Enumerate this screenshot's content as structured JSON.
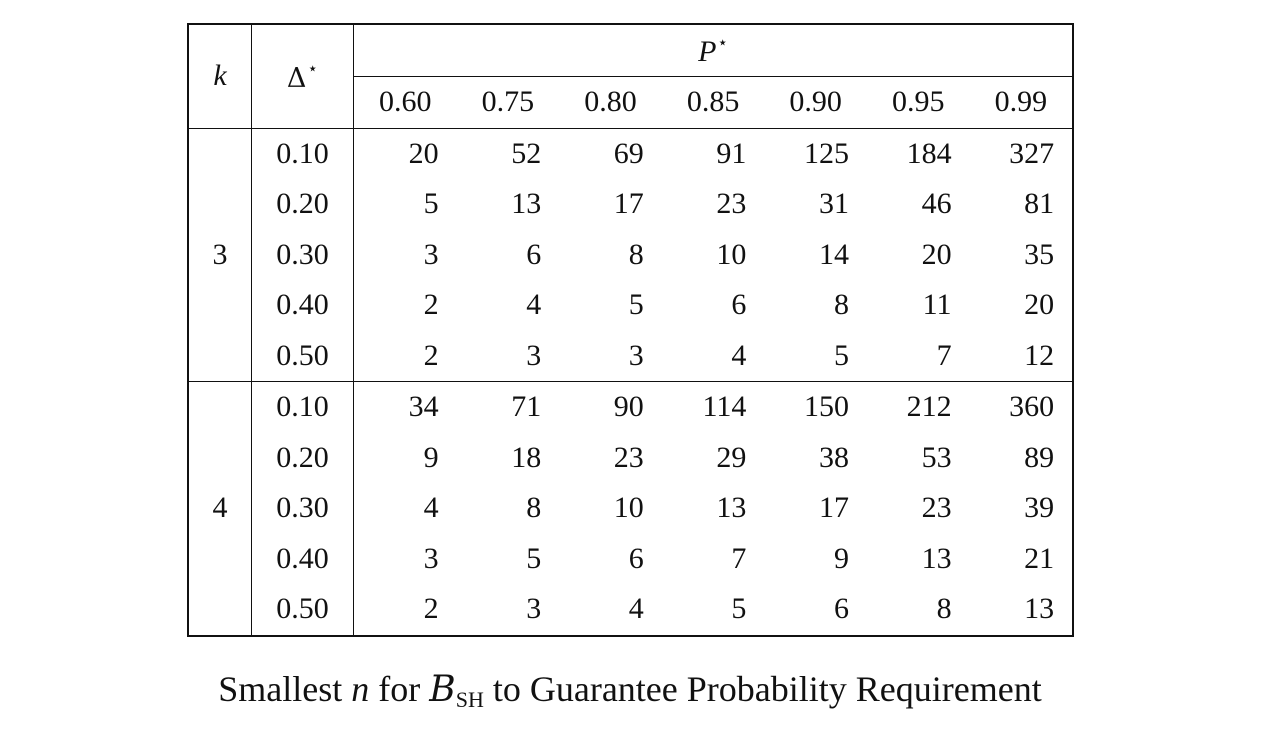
{
  "table": {
    "group_header": "P",
    "group_header_sup": "⋆",
    "col_k": "k",
    "col_delta": "Δ",
    "col_delta_sup": "⋆",
    "p_values": [
      "0.60",
      "0.75",
      "0.80",
      "0.85",
      "0.90",
      "0.95",
      "0.99"
    ],
    "groups": [
      {
        "k": "3",
        "rows": [
          {
            "delta": "0.10",
            "values": [
              "20",
              "52",
              "69",
              "91",
              "125",
              "184",
              "327"
            ]
          },
          {
            "delta": "0.20",
            "values": [
              "5",
              "13",
              "17",
              "23",
              "31",
              "46",
              "81"
            ]
          },
          {
            "delta": "0.30",
            "values": [
              "3",
              "6",
              "8",
              "10",
              "14",
              "20",
              "35"
            ]
          },
          {
            "delta": "0.40",
            "values": [
              "2",
              "4",
              "5",
              "6",
              "8",
              "11",
              "20"
            ]
          },
          {
            "delta": "0.50",
            "values": [
              "2",
              "3",
              "3",
              "4",
              "5",
              "7",
              "12"
            ]
          }
        ]
      },
      {
        "k": "4",
        "rows": [
          {
            "delta": "0.10",
            "values": [
              "34",
              "71",
              "90",
              "114",
              "150",
              "212",
              "360"
            ]
          },
          {
            "delta": "0.20",
            "values": [
              "9",
              "18",
              "23",
              "29",
              "38",
              "53",
              "89"
            ]
          },
          {
            "delta": "0.30",
            "values": [
              "4",
              "8",
              "10",
              "13",
              "17",
              "23",
              "39"
            ]
          },
          {
            "delta": "0.40",
            "values": [
              "3",
              "5",
              "6",
              "7",
              "9",
              "13",
              "21"
            ]
          },
          {
            "delta": "0.50",
            "values": [
              "2",
              "3",
              "4",
              "5",
              "6",
              "8",
              "13"
            ]
          }
        ]
      }
    ]
  },
  "caption": {
    "before": "Smallest ",
    "n": "n",
    "for": " for ",
    "script_b": "B",
    "sub": "SH",
    "after": " to Guarantee Probability Requirement"
  }
}
